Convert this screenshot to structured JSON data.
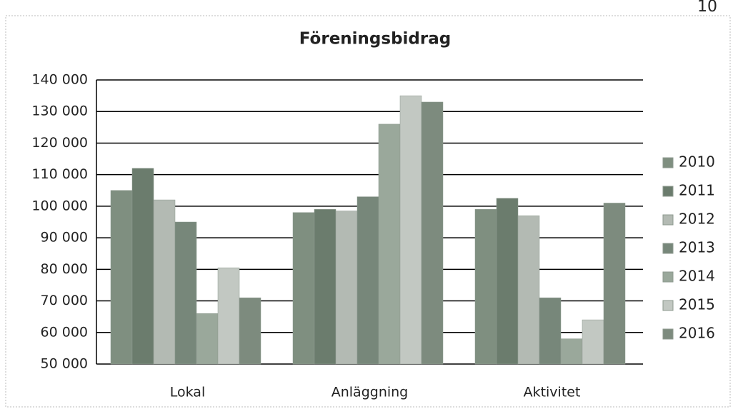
{
  "page_number": "10",
  "chart_data": {
    "type": "bar",
    "title": "Föreningsbidrag",
    "categories": [
      "Lokal",
      "Anläggning",
      "Aktivitet"
    ],
    "series": [
      {
        "name": "2010",
        "color": "#7f8f80",
        "values": [
          105000,
          98000,
          99000
        ]
      },
      {
        "name": "2011",
        "color": "#6b7c6d",
        "values": [
          112000,
          99000,
          102500
        ]
      },
      {
        "name": "2012",
        "color": "#b3bab3",
        "values": [
          102000,
          98500,
          97000
        ]
      },
      {
        "name": "2013",
        "color": "#77877a",
        "values": [
          95000,
          103000,
          71000
        ]
      },
      {
        "name": "2014",
        "color": "#9aa89b",
        "values": [
          66000,
          126000,
          58000
        ]
      },
      {
        "name": "2015",
        "color": "#c2c8c2",
        "values": [
          80500,
          135000,
          64000
        ]
      },
      {
        "name": "2016",
        "color": "#7d8b7e",
        "values": [
          71000,
          133000,
          101000
        ]
      }
    ],
    "ylim": [
      50000,
      140000
    ],
    "yticks": [
      {
        "value": 50000,
        "label": "50 000"
      },
      {
        "value": 60000,
        "label": "60 000"
      },
      {
        "value": 70000,
        "label": "70 000"
      },
      {
        "value": 80000,
        "label": "80 000"
      },
      {
        "value": 90000,
        "label": "90 000"
      },
      {
        "value": 100000,
        "label": "100 000"
      },
      {
        "value": 110000,
        "label": "110 000"
      },
      {
        "value": 120000,
        "label": "120 000"
      },
      {
        "value": 130000,
        "label": "130 000"
      },
      {
        "value": 140000,
        "label": "140 000"
      }
    ],
    "grid": true,
    "legend": "right"
  }
}
